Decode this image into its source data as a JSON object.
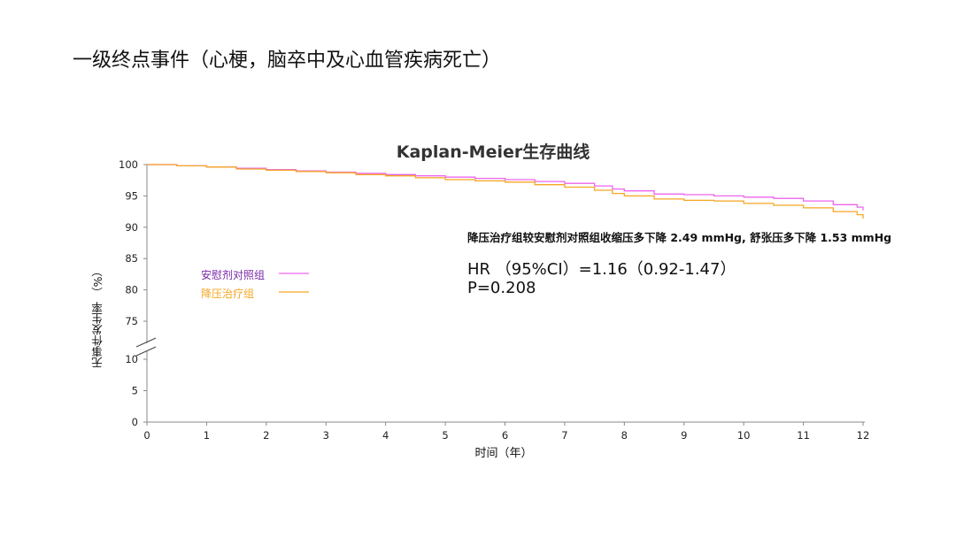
{
  "slide": {
    "title": "一级终点事件（心梗，脑卒中及心血管疾病死亡）"
  },
  "chart_data": {
    "type": "line",
    "title": "Kaplan-Meier生存曲线",
    "xlabel": "时间（年）",
    "ylabel": "无事件发生率 （%）",
    "xlim": [
      0,
      12
    ],
    "xticks": [
      "0",
      "1",
      "2",
      "3",
      "4",
      "5",
      "6",
      "7",
      "8",
      "9",
      "10",
      "11",
      "12"
    ],
    "yticks": [
      "0",
      "5",
      "10",
      "75",
      "80",
      "85",
      "90",
      "95",
      "100"
    ],
    "y_axis_break": "10–75",
    "grid": false,
    "legend_position": "left-middle",
    "series": [
      {
        "name": "安慰剂对照组",
        "color": "#ee66ee",
        "x": [
          0,
          0.5,
          1,
          1.5,
          2,
          2.5,
          3,
          3.5,
          4,
          4.5,
          5,
          5.5,
          6,
          6.5,
          7,
          7.5,
          7.8,
          8,
          8.5,
          9,
          9.5,
          10,
          10.5,
          11,
          11.5,
          11.9,
          12
        ],
        "y": [
          100,
          99.8,
          99.6,
          99.4,
          99.2,
          99.0,
          98.8,
          98.6,
          98.4,
          98.2,
          98.0,
          97.8,
          97.6,
          97.3,
          97.0,
          96.6,
          96.1,
          95.8,
          95.3,
          95.2,
          95.0,
          94.8,
          94.6,
          94.2,
          93.6,
          93.2,
          92.7
        ]
      },
      {
        "name": "降压治疗组",
        "color": "#f5a623",
        "x": [
          0,
          0.5,
          1,
          1.5,
          2,
          2.5,
          3,
          3.5,
          4,
          4.5,
          5,
          5.5,
          6,
          6.5,
          7,
          7.5,
          7.8,
          8,
          8.5,
          9,
          9.5,
          10,
          10.5,
          11,
          11.5,
          11.9,
          12
        ],
        "y": [
          100,
          99.8,
          99.6,
          99.3,
          99.1,
          98.9,
          98.7,
          98.4,
          98.2,
          97.9,
          97.6,
          97.4,
          97.2,
          96.8,
          96.4,
          95.9,
          95.4,
          95.0,
          94.5,
          94.3,
          94.2,
          93.8,
          93.5,
          93.1,
          92.5,
          92.0,
          91.4
        ]
      }
    ],
    "annotations": {
      "bp_note": "降压治疗组较安慰剂对照组收缩压多下降 2.49 mmHg, 舒张压多下降 1.53 mmHg",
      "hr": "HR （95%CI）=1.16（0.92-1.47）",
      "p": "P=0.208"
    }
  }
}
